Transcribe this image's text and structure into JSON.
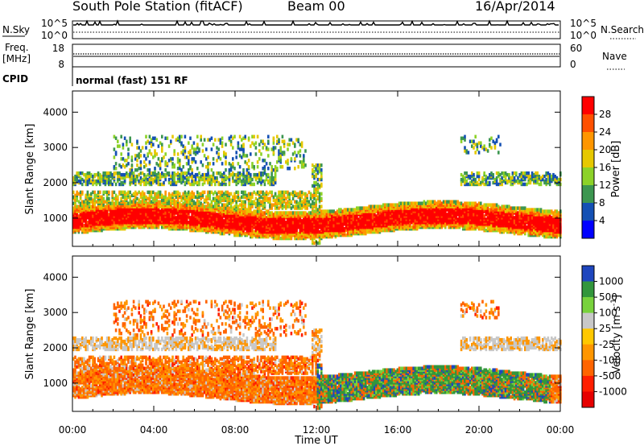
{
  "header": {
    "station": "South Pole Station (fitACF)",
    "beam": "Beam 00",
    "date": "16/Apr/2014"
  },
  "chart_data": [
    {
      "type": "line",
      "panel": "noise",
      "left_label": "N.Sky",
      "right_label": "N.Search",
      "left_ticks": [
        "10^5",
        "10^0"
      ],
      "right_ticks": [
        "10^5",
        "10^0"
      ]
    },
    {
      "type": "line",
      "panel": "frequency",
      "left_label_1": "Freq.",
      "left_label_2": "[MHz]",
      "left_ticks": [
        "18",
        "8"
      ],
      "right_label": "Nave",
      "right_ticks": [
        "60",
        "0"
      ]
    },
    {
      "type": "table",
      "panel": "cpid",
      "label": "CPID",
      "text": "normal (fast) 151 RF"
    },
    {
      "type": "heatmap",
      "panel": "power",
      "ylabel": "Slant Range [km]",
      "ylim": [
        200,
        4600
      ],
      "y_ticks": [
        1000,
        2000,
        3000,
        4000
      ],
      "xlim": [
        0,
        24
      ],
      "colorbar": {
        "label": "Power [dB]",
        "ticks": [
          "28",
          "24",
          "20",
          "16",
          "12",
          "8",
          "4"
        ],
        "colors": [
          "#ff0000",
          "#ff5000",
          "#ff9600",
          "#e6c800",
          "#8cd228",
          "#3c9650",
          "#1450b4",
          "#0000ff"
        ]
      }
    },
    {
      "type": "heatmap",
      "panel": "velocity",
      "ylabel": "Slant Range [km]",
      "ylim": [
        200,
        4600
      ],
      "y_ticks": [
        1000,
        2000,
        3000,
        4000
      ],
      "xlim": [
        0,
        24
      ],
      "colorbar": {
        "label": "Velocity [m s",
        "label_sup": "-1",
        "label_end": "]",
        "ticks": [
          "1000",
          "500",
          "100",
          "25",
          "-25",
          "-100",
          "-500",
          "-1000"
        ],
        "colors": [
          "#1e46be",
          "#32963c",
          "#78d23c",
          "#c8c8c8",
          "#ffc800",
          "#ff9600",
          "#ff6400",
          "#ff1e00",
          "#e60000"
        ]
      }
    }
  ],
  "x_axis": {
    "ticks": [
      "00:00",
      "04:00",
      "08:00",
      "12:00",
      "16:00",
      "20:00",
      "00:00"
    ],
    "label": "Time UT"
  }
}
